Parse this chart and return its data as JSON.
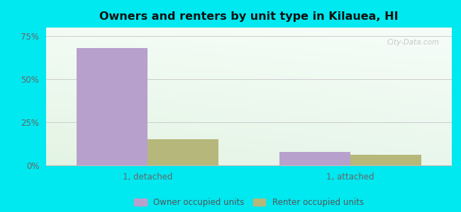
{
  "title": "Owners and renters by unit type in Kilauea, HI",
  "categories": [
    "1, detached",
    "1, attached"
  ],
  "owner_values": [
    68.0,
    8.0
  ],
  "renter_values": [
    15.0,
    6.0
  ],
  "owner_color": "#b8a0cc",
  "renter_color": "#b5b87a",
  "background_outer": "#00e8f0",
  "ylim": [
    0,
    80
  ],
  "yticks": [
    0,
    25,
    50,
    75
  ],
  "ytick_labels": [
    "0%",
    "25%",
    "50%",
    "75%"
  ],
  "legend_labels": [
    "Owner occupied units",
    "Renter occupied units"
  ],
  "bar_width": 0.28,
  "group_positions": [
    0.35,
    1.15
  ],
  "xlim": [
    -0.05,
    1.55
  ],
  "watermark": "City-Data.com"
}
